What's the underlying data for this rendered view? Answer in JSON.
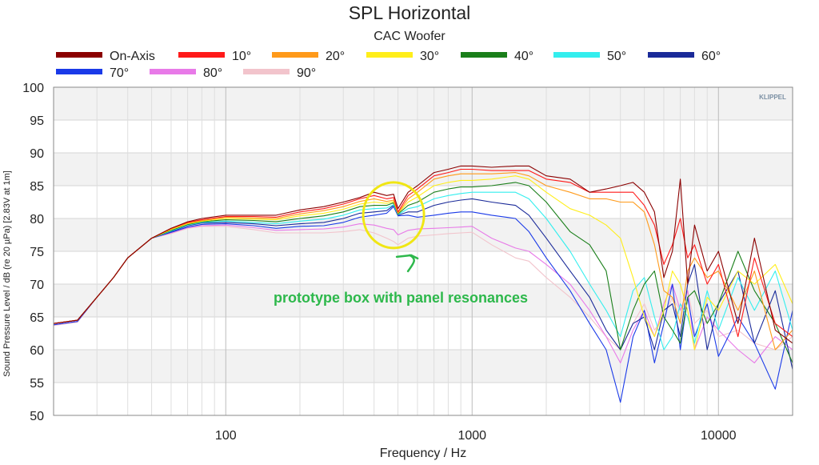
{
  "chart_data": {
    "type": "line",
    "title": "SPL Horizontal",
    "subtitle": "CAC Woofer",
    "xlabel": "Frequency / Hz",
    "ylabel": "Sound Pressure Level / dB (re 20 µPa)  [2.83V at 1m]",
    "xscale": "log",
    "xlim": [
      20,
      20000
    ],
    "ylim": [
      50,
      100
    ],
    "xticks": [
      100,
      1000,
      10000
    ],
    "xtick_labels": [
      "100",
      "1000",
      "10000"
    ],
    "yticks": [
      50,
      55,
      60,
      65,
      70,
      75,
      80,
      85,
      90,
      95,
      100
    ],
    "ytick_labels": [
      "50",
      "55",
      "60",
      "65",
      "70",
      "75",
      "80",
      "85",
      "90",
      "95",
      "100"
    ],
    "grid": true,
    "legend_position": "top",
    "watermark": "KLIPPEL",
    "annotation": {
      "text": "prototype box with panel resonances",
      "color": "#2db84b",
      "circle_color": "#f0e614",
      "circle_center": [
        480,
        80.5
      ]
    },
    "series": [
      {
        "name": "On-Axis",
        "color": "#8b0000",
        "x": [
          20,
          25,
          30,
          35,
          40,
          50,
          60,
          70,
          80,
          100,
          130,
          160,
          200,
          250,
          300,
          350,
          400,
          450,
          480,
          500,
          550,
          600,
          700,
          800,
          900,
          1000,
          1200,
          1500,
          1700,
          2000,
          2500,
          3000,
          3500,
          4000,
          4500,
          5000,
          5500,
          6000,
          6500,
          7000,
          7500,
          8000,
          9000,
          10000,
          12000,
          14000,
          17000,
          20000
        ],
        "y": [
          64,
          64.5,
          68,
          71,
          74,
          77,
          78.5,
          79.5,
          80,
          80.5,
          80.5,
          80.5,
          81.3,
          81.8,
          82.5,
          83.2,
          84,
          83.5,
          83.7,
          81.5,
          84,
          85,
          87,
          87.5,
          88,
          88,
          87.8,
          88,
          88,
          86.5,
          86,
          84,
          84.5,
          85,
          85.5,
          84,
          81,
          71,
          75,
          86,
          70,
          79,
          72,
          75,
          64,
          77,
          63,
          61
        ]
      },
      {
        "name": "10°",
        "color": "#ff1a1a",
        "x": [
          20,
          25,
          30,
          35,
          40,
          50,
          60,
          70,
          80,
          100,
          130,
          160,
          200,
          250,
          300,
          350,
          400,
          450,
          480,
          500,
          550,
          600,
          700,
          800,
          900,
          1000,
          1200,
          1500,
          1700,
          2000,
          2500,
          3000,
          3500,
          4000,
          4500,
          5000,
          5500,
          6000,
          6500,
          7000,
          7500,
          8000,
          9000,
          10000,
          12000,
          14000,
          17000,
          20000
        ],
        "y": [
          64,
          64.5,
          68,
          71,
          74,
          77,
          78.5,
          79.4,
          79.8,
          80.3,
          80.3,
          80.2,
          81,
          81.5,
          82.2,
          83,
          83.5,
          83,
          83.2,
          81,
          83.5,
          84.5,
          86.5,
          87,
          87.5,
          87.5,
          87.3,
          87.3,
          87.3,
          86,
          85.5,
          84,
          84,
          84,
          84,
          82,
          79,
          73,
          76,
          80,
          74,
          76,
          70,
          73,
          62,
          74,
          64,
          62
        ]
      },
      {
        "name": "20°",
        "color": "#ff9a1a",
        "x": [
          20,
          25,
          30,
          35,
          40,
          50,
          60,
          70,
          80,
          100,
          130,
          160,
          200,
          250,
          300,
          350,
          400,
          450,
          480,
          500,
          550,
          600,
          700,
          800,
          900,
          1000,
          1200,
          1500,
          1700,
          2000,
          2500,
          3000,
          3500,
          4000,
          4500,
          5000,
          5500,
          6000,
          6500,
          7000,
          7500,
          8000,
          9000,
          10000,
          12000,
          14000,
          17000,
          20000
        ],
        "y": [
          64,
          64.5,
          68,
          71,
          74,
          77,
          78.4,
          79.3,
          79.7,
          80.2,
          80.1,
          80,
          80.7,
          81.2,
          81.8,
          82.6,
          83,
          82.6,
          82.8,
          80.8,
          83,
          84,
          86,
          86.5,
          86.8,
          86.8,
          86.8,
          87,
          86.5,
          85,
          84,
          83,
          83,
          82.5,
          82.5,
          81,
          76,
          69,
          68,
          64,
          72,
          74,
          71,
          72,
          66,
          72,
          60,
          63
        ]
      },
      {
        "name": "30°",
        "color": "#ffee1a",
        "x": [
          20,
          25,
          30,
          35,
          40,
          50,
          60,
          70,
          80,
          100,
          130,
          160,
          200,
          250,
          300,
          350,
          400,
          450,
          480,
          500,
          550,
          600,
          700,
          800,
          900,
          1000,
          1200,
          1500,
          1700,
          2000,
          2500,
          3000,
          3500,
          4000,
          4500,
          5000,
          5500,
          6000,
          6500,
          7000,
          7500,
          8000,
          9000,
          10000,
          12000,
          14000,
          17000,
          20000
        ],
        "y": [
          64,
          64.5,
          68,
          71,
          74,
          77,
          78.3,
          79.2,
          79.6,
          80,
          79.9,
          79.8,
          80.4,
          80.8,
          81.4,
          82.2,
          82.5,
          82.3,
          82.6,
          80.8,
          82.5,
          83.3,
          85,
          85.5,
          85.8,
          85.8,
          86,
          86.5,
          86,
          84,
          81.5,
          80.5,
          79,
          77,
          71,
          65,
          62,
          66,
          72,
          70,
          66,
          60,
          68,
          66,
          72,
          70,
          73,
          67
        ]
      },
      {
        "name": "40°",
        "color": "#1a7f1a",
        "x": [
          20,
          25,
          30,
          35,
          40,
          50,
          60,
          70,
          80,
          100,
          130,
          160,
          200,
          250,
          300,
          350,
          400,
          450,
          480,
          500,
          550,
          600,
          700,
          800,
          900,
          1000,
          1200,
          1500,
          1700,
          2000,
          2500,
          3000,
          3500,
          4000,
          4500,
          5000,
          5500,
          6000,
          6500,
          7000,
          7500,
          8000,
          9000,
          10000,
          12000,
          14000,
          17000,
          20000
        ],
        "y": [
          64,
          64.5,
          68,
          71,
          74,
          77,
          78.2,
          79.1,
          79.5,
          79.8,
          79.7,
          79.5,
          80,
          80.4,
          81,
          81.8,
          82,
          82,
          82.4,
          80.7,
          82,
          82.5,
          84,
          84.5,
          84.8,
          84.8,
          85,
          85.5,
          85,
          82.5,
          78,
          76,
          72,
          60,
          66,
          70,
          72,
          65,
          63,
          61,
          68,
          69,
          64,
          67,
          75,
          69,
          64,
          58
        ]
      },
      {
        "name": "50°",
        "color": "#33eeee",
        "x": [
          20,
          25,
          30,
          35,
          40,
          50,
          60,
          70,
          80,
          100,
          130,
          160,
          200,
          250,
          300,
          350,
          400,
          450,
          480,
          500,
          550,
          600,
          700,
          800,
          900,
          1000,
          1200,
          1500,
          1700,
          2000,
          2500,
          3000,
          3500,
          4000,
          4500,
          5000,
          5500,
          6000,
          6500,
          7000,
          7500,
          8000,
          9000,
          10000,
          12000,
          14000,
          17000,
          20000
        ],
        "y": [
          64,
          64.5,
          68,
          71,
          74,
          77,
          78.1,
          79,
          79.4,
          79.6,
          79.4,
          79.2,
          79.6,
          79.9,
          80.5,
          81.3,
          81.5,
          81.6,
          82.1,
          80.6,
          81.5,
          81.8,
          83,
          83.5,
          83.8,
          84,
          84,
          84,
          83,
          80,
          75,
          70,
          66,
          62,
          69,
          71,
          65,
          60,
          62,
          67,
          65,
          61,
          69,
          63,
          71,
          66,
          72,
          63
        ]
      },
      {
        "name": "60°",
        "color": "#1a2a99",
        "x": [
          20,
          25,
          30,
          35,
          40,
          50,
          60,
          70,
          80,
          100,
          130,
          160,
          200,
          250,
          300,
          350,
          400,
          450,
          480,
          500,
          550,
          600,
          700,
          800,
          900,
          1000,
          1200,
          1500,
          1700,
          2000,
          2500,
          3000,
          3500,
          4000,
          4500,
          5000,
          5500,
          6000,
          6500,
          7000,
          7500,
          8000,
          9000,
          10000,
          12000,
          14000,
          17000,
          20000
        ],
        "y": [
          64,
          64.5,
          68,
          71,
          74,
          77,
          78,
          78.9,
          79.3,
          79.4,
          79.2,
          78.9,
          79.2,
          79.4,
          80,
          80.8,
          81,
          81.2,
          82,
          80.5,
          81,
          81,
          82,
          82.5,
          82.8,
          83,
          82.5,
          82,
          80.5,
          77,
          72,
          68,
          63,
          60,
          64,
          65,
          60,
          66,
          67,
          62,
          70,
          73,
          60,
          67,
          72,
          61,
          69,
          57
        ]
      },
      {
        "name": "70°",
        "color": "#1a3ae8",
        "x": [
          20,
          25,
          30,
          35,
          40,
          50,
          60,
          70,
          80,
          100,
          130,
          160,
          200,
          250,
          300,
          350,
          400,
          450,
          480,
          500,
          550,
          600,
          700,
          800,
          900,
          1000,
          1200,
          1500,
          1700,
          2000,
          2500,
          3000,
          3500,
          4000,
          4500,
          5000,
          5500,
          6000,
          6500,
          7000,
          7500,
          8000,
          9000,
          10000,
          12000,
          14000,
          17000,
          20000
        ],
        "y": [
          63.8,
          64.3,
          68,
          71,
          74,
          77,
          77.9,
          78.7,
          79.1,
          79.2,
          78.9,
          78.5,
          78.8,
          78.9,
          79.4,
          80.2,
          80.5,
          80.8,
          81.8,
          80.4,
          80.5,
          80.2,
          80.5,
          80.8,
          81,
          81,
          80.5,
          80,
          78,
          74,
          69,
          64,
          60,
          52,
          62,
          66,
          58,
          64,
          70,
          60,
          68,
          62,
          67,
          59,
          65,
          61,
          54,
          66
        ]
      },
      {
        "name": "80°",
        "color": "#e87ae8",
        "x": [
          20,
          25,
          30,
          35,
          40,
          50,
          60,
          70,
          80,
          100,
          130,
          160,
          200,
          250,
          300,
          350,
          400,
          450,
          480,
          500,
          550,
          600,
          700,
          800,
          900,
          1000,
          1200,
          1500,
          1700,
          2000,
          2500,
          3000,
          3500,
          4000,
          4500,
          5000,
          5500,
          6000,
          6500,
          7000,
          7500,
          8000,
          9000,
          10000,
          12000,
          14000,
          17000,
          20000
        ],
        "y": [
          63.8,
          64.3,
          68,
          71,
          74,
          77,
          77.8,
          78.6,
          78.9,
          79,
          78.6,
          78.2,
          78.3,
          78.4,
          78.7,
          79.2,
          79,
          78.5,
          78.3,
          77.5,
          78.2,
          78.4,
          78.5,
          78.6,
          78.7,
          78.8,
          77,
          75.5,
          75,
          73,
          70,
          66,
          62,
          58,
          63,
          66,
          62,
          67,
          70,
          66,
          69,
          60,
          65,
          63,
          60,
          58,
          62,
          60
        ]
      },
      {
        "name": "90°",
        "color": "#f2c4cc",
        "x": [
          20,
          25,
          30,
          35,
          40,
          50,
          60,
          70,
          80,
          100,
          130,
          160,
          200,
          250,
          300,
          350,
          400,
          450,
          480,
          500,
          550,
          600,
          700,
          800,
          900,
          1000,
          1200,
          1500,
          1700,
          2000,
          2500,
          3000,
          3500,
          4000,
          4500,
          5000,
          5500,
          6000,
          6500,
          7000,
          7500,
          8000,
          9000,
          10000,
          12000,
          14000,
          17000,
          20000
        ],
        "y": [
          63.7,
          64.2,
          68,
          71,
          74,
          77,
          77.7,
          78.5,
          78.8,
          78.8,
          78.3,
          77.8,
          77.8,
          77.8,
          78,
          78.3,
          77.8,
          77,
          76.5,
          76,
          77,
          77.3,
          77.5,
          77.7,
          77.8,
          77.9,
          76,
          74,
          73.5,
          71,
          68,
          65,
          62,
          60,
          64,
          67,
          63,
          65,
          68,
          66,
          69,
          64,
          66,
          62,
          63,
          61,
          60,
          62
        ]
      }
    ]
  }
}
